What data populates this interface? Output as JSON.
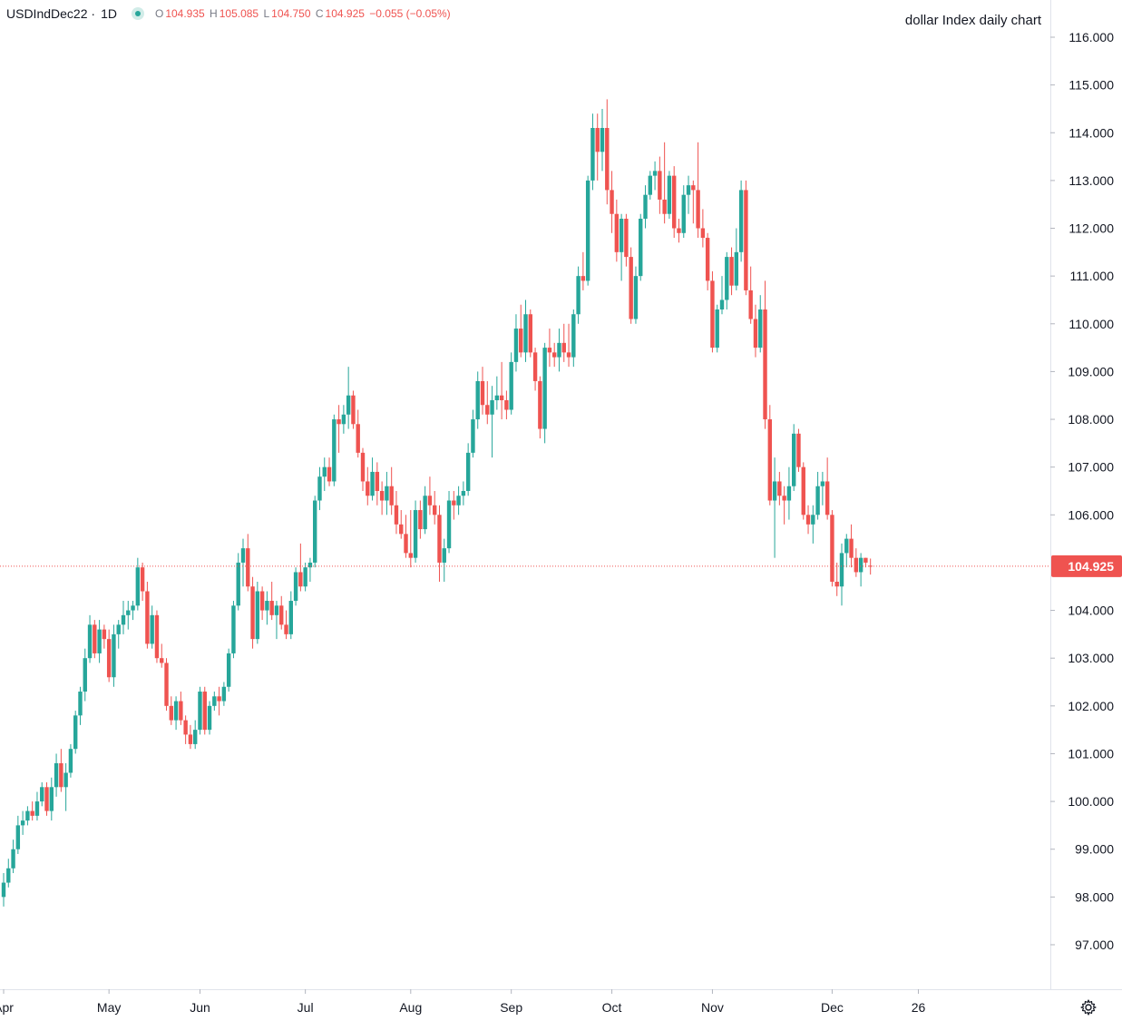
{
  "header": {
    "symbol": "USDIndDec22",
    "timeframe": "1D",
    "o_key": "O",
    "o_val": "104.935",
    "h_key": "H",
    "h_val": "105.085",
    "l_key": "L",
    "l_val": "104.750",
    "c_key": "C",
    "c_val": "104.925",
    "change": "−0.055 (−0.05%)"
  },
  "annotation": "dollar Index daily chart",
  "icons": {
    "status": "live-dot-icon",
    "settings": "gear-icon"
  },
  "colors": {
    "up": "#26a69a",
    "down": "#ef5350",
    "last_price_line": "#ef5350"
  },
  "chart_data": {
    "type": "candlestick",
    "title": "",
    "ylim": [
      96,
      116.8
    ],
    "y_ticks": [
      "116.000",
      "115.000",
      "114.000",
      "113.000",
      "112.000",
      "111.000",
      "110.000",
      "109.000",
      "108.000",
      "107.000",
      "106.000",
      "104.000",
      "103.000",
      "102.000",
      "101.000",
      "100.000",
      "99.000",
      "98.000",
      "97.000"
    ],
    "x_ticks": [
      "Apr",
      "May",
      "Jun",
      "Jul",
      "Aug",
      "Sep",
      "Oct",
      "Nov",
      "Dec",
      "26"
    ],
    "last_price": "104.925",
    "grid": false,
    "candles": [
      {
        "c": "Apr",
        "o": 98.0,
        "h": 98.5,
        "l": 97.8,
        "c2": 98.3
      },
      {
        "o": 98.3,
        "h": 98.8,
        "l": 98.2,
        "c2": 98.6
      },
      {
        "o": 98.6,
        "h": 99.2,
        "l": 98.5,
        "c2": 99.0
      },
      {
        "o": 99.0,
        "h": 99.7,
        "l": 98.9,
        "c2": 99.5
      },
      {
        "o": 99.5,
        "h": 99.8,
        "l": 99.3,
        "c2": 99.6
      },
      {
        "o": 99.6,
        "h": 99.9,
        "l": 99.5,
        "c2": 99.8
      },
      {
        "o": 99.8,
        "h": 100.0,
        "l": 99.6,
        "c2": 99.7
      },
      {
        "o": 99.7,
        "h": 100.2,
        "l": 99.6,
        "c2": 100.0
      },
      {
        "o": 100.0,
        "h": 100.4,
        "l": 99.9,
        "c2": 100.3
      },
      {
        "o": 100.3,
        "h": 100.4,
        "l": 99.7,
        "c2": 99.8
      },
      {
        "o": 99.8,
        "h": 100.5,
        "l": 99.6,
        "c2": 100.3
      },
      {
        "o": 100.3,
        "h": 101.0,
        "l": 100.1,
        "c2": 100.8
      },
      {
        "o": 100.8,
        "h": 101.1,
        "l": 100.2,
        "c2": 100.3
      },
      {
        "o": 100.3,
        "h": 100.8,
        "l": 99.8,
        "c2": 100.6
      },
      {
        "o": 100.6,
        "h": 101.2,
        "l": 100.5,
        "c2": 101.1
      },
      {
        "o": 101.1,
        "h": 101.9,
        "l": 101.0,
        "c2": 101.8
      },
      {
        "o": 101.8,
        "h": 102.4,
        "l": 101.6,
        "c2": 102.3
      },
      {
        "o": 102.3,
        "h": 103.2,
        "l": 102.1,
        "c2": 103.0
      },
      {
        "o": 103.0,
        "h": 103.9,
        "l": 102.9,
        "c2": 103.7
      },
      {
        "o": 103.7,
        "h": 103.8,
        "l": 103.0,
        "c2": 103.1
      },
      {
        "o": 103.1,
        "h": 103.8,
        "l": 102.9,
        "c2": 103.6
      },
      {
        "o": 103.6,
        "h": 103.7,
        "l": 103.2,
        "c2": 103.4
      },
      {
        "c": "May",
        "o": 103.4,
        "h": 103.6,
        "l": 102.5,
        "c2": 102.6
      },
      {
        "o": 102.6,
        "h": 103.7,
        "l": 102.4,
        "c2": 103.5
      },
      {
        "o": 103.5,
        "h": 103.8,
        "l": 103.2,
        "c2": 103.7
      },
      {
        "o": 103.7,
        "h": 104.2,
        "l": 103.5,
        "c2": 103.9
      },
      {
        "o": 103.9,
        "h": 104.2,
        "l": 103.6,
        "c2": 104.0
      },
      {
        "o": 104.0,
        "h": 104.2,
        "l": 103.8,
        "c2": 104.1
      },
      {
        "o": 104.1,
        "h": 105.1,
        "l": 104.0,
        "c2": 104.9
      },
      {
        "o": 104.9,
        "h": 105.0,
        "l": 104.2,
        "c2": 104.4
      },
      {
        "o": 104.4,
        "h": 104.6,
        "l": 103.2,
        "c2": 103.3
      },
      {
        "o": 103.3,
        "h": 104.1,
        "l": 103.2,
        "c2": 103.9
      },
      {
        "o": 103.9,
        "h": 104.0,
        "l": 102.9,
        "c2": 103.0
      },
      {
        "o": 103.0,
        "h": 103.3,
        "l": 102.8,
        "c2": 102.9
      },
      {
        "o": 102.9,
        "h": 103.0,
        "l": 101.9,
        "c2": 102.0
      },
      {
        "o": 102.0,
        "h": 102.2,
        "l": 101.6,
        "c2": 101.7
      },
      {
        "o": 101.7,
        "h": 102.2,
        "l": 101.5,
        "c2": 102.1
      },
      {
        "o": 102.1,
        "h": 102.3,
        "l": 101.6,
        "c2": 101.7
      },
      {
        "o": 101.7,
        "h": 101.8,
        "l": 101.2,
        "c2": 101.4
      },
      {
        "o": 101.4,
        "h": 101.6,
        "l": 101.1,
        "c2": 101.2
      },
      {
        "o": 101.2,
        "h": 101.7,
        "l": 101.1,
        "c2": 101.5
      },
      {
        "c": "Jun",
        "o": 101.5,
        "h": 102.4,
        "l": 101.4,
        "c2": 102.3
      },
      {
        "o": 102.3,
        "h": 102.4,
        "l": 101.4,
        "c2": 101.5
      },
      {
        "o": 101.5,
        "h": 102.1,
        "l": 101.4,
        "c2": 102.0
      },
      {
        "o": 102.0,
        "h": 102.3,
        "l": 101.9,
        "c2": 102.2
      },
      {
        "o": 102.2,
        "h": 102.4,
        "l": 101.8,
        "c2": 102.1
      },
      {
        "o": 102.1,
        "h": 102.5,
        "l": 102.0,
        "c2": 102.4
      },
      {
        "o": 102.4,
        "h": 103.2,
        "l": 102.3,
        "c2": 103.1
      },
      {
        "o": 103.1,
        "h": 104.2,
        "l": 103.0,
        "c2": 104.1
      },
      {
        "o": 104.1,
        "h": 105.2,
        "l": 104.0,
        "c2": 105.0
      },
      {
        "o": 105.0,
        "h": 105.5,
        "l": 104.5,
        "c2": 105.3
      },
      {
        "o": 105.3,
        "h": 105.6,
        "l": 104.4,
        "c2": 104.5
      },
      {
        "o": 104.5,
        "h": 104.7,
        "l": 103.2,
        "c2": 103.4
      },
      {
        "o": 103.4,
        "h": 104.6,
        "l": 103.3,
        "c2": 104.4
      },
      {
        "o": 104.4,
        "h": 104.5,
        "l": 103.8,
        "c2": 104.0
      },
      {
        "o": 104.0,
        "h": 104.4,
        "l": 103.7,
        "c2": 104.2
      },
      {
        "o": 104.2,
        "h": 104.6,
        "l": 103.8,
        "c2": 103.9
      },
      {
        "o": 103.9,
        "h": 104.2,
        "l": 103.4,
        "c2": 104.1
      },
      {
        "o": 104.1,
        "h": 104.3,
        "l": 103.6,
        "c2": 103.7
      },
      {
        "o": 103.7,
        "h": 104.0,
        "l": 103.4,
        "c2": 103.5
      },
      {
        "o": 103.5,
        "h": 104.4,
        "l": 103.4,
        "c2": 104.2
      },
      {
        "o": 104.2,
        "h": 104.9,
        "l": 104.1,
        "c2": 104.8
      },
      {
        "o": 104.8,
        "h": 105.4,
        "l": 104.4,
        "c2": 104.5
      },
      {
        "c": "Jul",
        "o": 104.5,
        "h": 105.0,
        "l": 104.4,
        "c2": 104.9
      },
      {
        "o": 104.9,
        "h": 105.1,
        "l": 104.6,
        "c2": 105.0
      },
      {
        "o": 105.0,
        "h": 106.4,
        "l": 104.9,
        "c2": 106.3
      },
      {
        "o": 106.3,
        "h": 107.0,
        "l": 106.1,
        "c2": 106.8
      },
      {
        "o": 106.8,
        "h": 107.2,
        "l": 106.5,
        "c2": 107.0
      },
      {
        "o": 107.0,
        "h": 107.2,
        "l": 106.6,
        "c2": 106.7
      },
      {
        "o": 106.7,
        "h": 108.1,
        "l": 106.6,
        "c2": 108.0
      },
      {
        "o": 108.0,
        "h": 108.3,
        "l": 107.3,
        "c2": 107.9
      },
      {
        "o": 107.9,
        "h": 108.3,
        "l": 107.7,
        "c2": 108.1
      },
      {
        "o": 108.1,
        "h": 109.1,
        "l": 107.8,
        "c2": 108.5
      },
      {
        "o": 108.5,
        "h": 108.6,
        "l": 107.8,
        "c2": 107.9
      },
      {
        "o": 107.9,
        "h": 108.2,
        "l": 107.2,
        "c2": 107.3
      },
      {
        "o": 107.3,
        "h": 107.4,
        "l": 106.5,
        "c2": 106.7
      },
      {
        "o": 106.7,
        "h": 107.0,
        "l": 106.2,
        "c2": 106.4
      },
      {
        "o": 106.4,
        "h": 107.2,
        "l": 106.3,
        "c2": 106.9
      },
      {
        "o": 106.9,
        "h": 107.1,
        "l": 106.2,
        "c2": 106.5
      },
      {
        "o": 106.5,
        "h": 106.7,
        "l": 106.0,
        "c2": 106.3
      },
      {
        "o": 106.3,
        "h": 106.9,
        "l": 106.0,
        "c2": 106.6
      },
      {
        "o": 106.6,
        "h": 107.0,
        "l": 106.0,
        "c2": 106.2
      },
      {
        "o": 106.2,
        "h": 106.5,
        "l": 105.6,
        "c2": 105.8
      },
      {
        "o": 105.8,
        "h": 106.1,
        "l": 105.5,
        "c2": 105.6
      },
      {
        "o": 105.6,
        "h": 106.0,
        "l": 105.1,
        "c2": 105.2
      },
      {
        "c": "Aug",
        "o": 105.2,
        "h": 106.1,
        "l": 104.9,
        "c2": 105.1
      },
      {
        "o": 105.1,
        "h": 106.3,
        "l": 105.0,
        "c2": 106.1
      },
      {
        "o": 106.1,
        "h": 106.3,
        "l": 105.5,
        "c2": 105.7
      },
      {
        "o": 105.7,
        "h": 106.6,
        "l": 105.6,
        "c2": 106.4
      },
      {
        "o": 106.4,
        "h": 106.8,
        "l": 106.0,
        "c2": 106.2
      },
      {
        "o": 106.2,
        "h": 106.5,
        "l": 105.8,
        "c2": 106.0
      },
      {
        "o": 106.0,
        "h": 106.2,
        "l": 104.6,
        "c2": 105.0
      },
      {
        "o": 105.0,
        "h": 105.5,
        "l": 104.6,
        "c2": 105.3
      },
      {
        "o": 105.3,
        "h": 106.5,
        "l": 105.2,
        "c2": 106.3
      },
      {
        "o": 106.3,
        "h": 106.5,
        "l": 105.9,
        "c2": 106.2
      },
      {
        "o": 106.2,
        "h": 106.6,
        "l": 106.0,
        "c2": 106.4
      },
      {
        "o": 106.4,
        "h": 106.7,
        "l": 106.2,
        "c2": 106.5
      },
      {
        "o": 106.5,
        "h": 107.5,
        "l": 106.4,
        "c2": 107.3
      },
      {
        "o": 107.3,
        "h": 108.2,
        "l": 107.2,
        "c2": 108.0
      },
      {
        "o": 108.0,
        "h": 109.0,
        "l": 107.8,
        "c2": 108.8
      },
      {
        "o": 108.8,
        "h": 109.1,
        "l": 108.1,
        "c2": 108.3
      },
      {
        "o": 108.3,
        "h": 108.8,
        "l": 107.9,
        "c2": 108.1
      },
      {
        "o": 108.1,
        "h": 108.7,
        "l": 107.2,
        "c2": 108.4
      },
      {
        "o": 108.4,
        "h": 108.9,
        "l": 108.2,
        "c2": 108.5
      },
      {
        "o": 108.5,
        "h": 109.2,
        "l": 108.0,
        "c2": 108.4
      },
      {
        "o": 108.4,
        "h": 108.6,
        "l": 108.0,
        "c2": 108.2
      },
      {
        "c": "Sep",
        "o": 108.2,
        "h": 109.4,
        "l": 108.1,
        "c2": 109.2
      },
      {
        "o": 109.2,
        "h": 110.2,
        "l": 109.0,
        "c2": 109.9
      },
      {
        "o": 109.9,
        "h": 110.4,
        "l": 109.3,
        "c2": 109.4
      },
      {
        "o": 109.4,
        "h": 110.5,
        "l": 109.2,
        "c2": 110.2
      },
      {
        "o": 110.2,
        "h": 110.3,
        "l": 109.3,
        "c2": 109.4
      },
      {
        "o": 109.4,
        "h": 109.5,
        "l": 108.6,
        "c2": 108.8
      },
      {
        "o": 108.8,
        "h": 108.9,
        "l": 107.6,
        "c2": 107.8
      },
      {
        "o": 107.8,
        "h": 109.6,
        "l": 107.5,
        "c2": 109.5
      },
      {
        "o": 109.5,
        "h": 109.9,
        "l": 109.1,
        "c2": 109.4
      },
      {
        "o": 109.4,
        "h": 109.6,
        "l": 109.1,
        "c2": 109.3
      },
      {
        "o": 109.3,
        "h": 109.9,
        "l": 109.0,
        "c2": 109.6
      },
      {
        "o": 109.6,
        "h": 110.0,
        "l": 109.2,
        "c2": 109.4
      },
      {
        "o": 109.4,
        "h": 110.0,
        "l": 109.1,
        "c2": 109.3
      },
      {
        "o": 109.3,
        "h": 110.3,
        "l": 109.1,
        "c2": 110.2
      },
      {
        "o": 110.2,
        "h": 111.2,
        "l": 110.0,
        "c2": 111.0
      },
      {
        "o": 111.0,
        "h": 111.5,
        "l": 110.7,
        "c2": 110.9
      },
      {
        "o": 110.9,
        "h": 113.1,
        "l": 110.8,
        "c2": 113.0
      },
      {
        "o": 113.0,
        "h": 114.4,
        "l": 112.8,
        "c2": 114.1
      },
      {
        "o": 114.1,
        "h": 114.4,
        "l": 113.0,
        "c2": 113.6
      },
      {
        "o": 113.6,
        "h": 114.5,
        "l": 113.2,
        "c2": 114.1
      },
      {
        "o": 114.1,
        "h": 114.7,
        "l": 112.5,
        "c2": 112.8
      },
      {
        "c": "Oct",
        "o": 112.8,
        "h": 113.2,
        "l": 111.9,
        "c2": 112.3
      },
      {
        "o": 112.3,
        "h": 112.6,
        "l": 111.3,
        "c2": 111.5
      },
      {
        "o": 111.5,
        "h": 112.3,
        "l": 110.9,
        "c2": 112.2
      },
      {
        "o": 112.2,
        "h": 112.3,
        "l": 111.2,
        "c2": 111.4
      },
      {
        "o": 111.4,
        "h": 111.6,
        "l": 110.0,
        "c2": 110.1
      },
      {
        "o": 110.1,
        "h": 111.2,
        "l": 110.0,
        "c2": 111.0
      },
      {
        "o": 111.0,
        "h": 112.3,
        "l": 110.9,
        "c2": 112.2
      },
      {
        "o": 112.2,
        "h": 112.9,
        "l": 112.0,
        "c2": 112.7
      },
      {
        "o": 112.7,
        "h": 113.2,
        "l": 112.6,
        "c2": 113.1
      },
      {
        "o": 113.1,
        "h": 113.4,
        "l": 112.8,
        "c2": 113.2
      },
      {
        "o": 113.2,
        "h": 113.5,
        "l": 112.3,
        "c2": 112.6
      },
      {
        "o": 112.6,
        "h": 113.8,
        "l": 112.1,
        "c2": 112.3
      },
      {
        "o": 112.3,
        "h": 113.2,
        "l": 112.2,
        "c2": 113.1
      },
      {
        "o": 113.1,
        "h": 113.3,
        "l": 111.8,
        "c2": 112.0
      },
      {
        "o": 112.0,
        "h": 112.2,
        "l": 111.7,
        "c2": 111.9
      },
      {
        "o": 111.9,
        "h": 112.9,
        "l": 111.8,
        "c2": 112.7
      },
      {
        "o": 112.7,
        "h": 113.1,
        "l": 112.3,
        "c2": 112.9
      },
      {
        "o": 112.9,
        "h": 113.0,
        "l": 112.1,
        "c2": 112.8
      },
      {
        "o": 112.8,
        "h": 113.8,
        "l": 111.8,
        "c2": 112.0
      },
      {
        "o": 112.0,
        "h": 112.4,
        "l": 111.6,
        "c2": 111.8
      },
      {
        "o": 111.8,
        "h": 111.9,
        "l": 110.7,
        "c2": 110.9
      },
      {
        "c": "Nov",
        "o": 110.9,
        "h": 111.1,
        "l": 109.4,
        "c2": 109.5
      },
      {
        "o": 109.5,
        "h": 110.4,
        "l": 109.4,
        "c2": 110.3
      },
      {
        "o": 110.3,
        "h": 111.0,
        "l": 110.2,
        "c2": 110.5
      },
      {
        "o": 110.5,
        "h": 111.5,
        "l": 110.3,
        "c2": 111.4
      },
      {
        "o": 111.4,
        "h": 111.6,
        "l": 110.6,
        "c2": 110.8
      },
      {
        "o": 110.8,
        "h": 112.0,
        "l": 110.7,
        "c2": 111.5
      },
      {
        "o": 111.5,
        "h": 113.0,
        "l": 111.3,
        "c2": 112.8
      },
      {
        "o": 112.8,
        "h": 113.0,
        "l": 110.6,
        "c2": 110.7
      },
      {
        "o": 110.7,
        "h": 111.2,
        "l": 110.0,
        "c2": 110.1
      },
      {
        "o": 110.1,
        "h": 110.4,
        "l": 109.3,
        "c2": 109.5
      },
      {
        "o": 109.5,
        "h": 110.6,
        "l": 109.4,
        "c2": 110.3
      },
      {
        "o": 110.3,
        "h": 110.9,
        "l": 107.8,
        "c2": 108.0
      },
      {
        "o": 108.0,
        "h": 108.3,
        "l": 106.2,
        "c2": 106.3
      },
      {
        "o": 106.3,
        "h": 107.2,
        "l": 105.1,
        "c2": 106.7
      },
      {
        "o": 106.7,
        "h": 106.9,
        "l": 106.2,
        "c2": 106.4
      },
      {
        "o": 106.4,
        "h": 106.6,
        "l": 105.8,
        "c2": 106.3
      },
      {
        "o": 106.3,
        "h": 107.0,
        "l": 105.9,
        "c2": 106.6
      },
      {
        "o": 106.6,
        "h": 107.9,
        "l": 106.5,
        "c2": 107.7
      },
      {
        "o": 107.7,
        "h": 107.8,
        "l": 106.9,
        "c2": 107.0
      },
      {
        "o": 107.0,
        "h": 107.1,
        "l": 105.9,
        "c2": 106.0
      },
      {
        "o": 106.0,
        "h": 106.2,
        "l": 105.6,
        "c2": 105.8
      },
      {
        "o": 105.8,
        "h": 106.2,
        "l": 105.4,
        "c2": 106.0
      },
      {
        "o": 106.0,
        "h": 106.9,
        "l": 105.9,
        "c2": 106.6
      },
      {
        "o": 106.6,
        "h": 106.9,
        "l": 106.2,
        "c2": 106.7
      },
      {
        "o": 106.7,
        "h": 107.2,
        "l": 105.9,
        "c2": 106.0
      },
      {
        "c": "Dec",
        "o": 106.0,
        "h": 106.1,
        "l": 104.5,
        "c2": 104.6
      },
      {
        "o": 104.6,
        "h": 105.0,
        "l": 104.3,
        "c2": 104.5
      },
      {
        "o": 104.5,
        "h": 105.4,
        "l": 104.1,
        "c2": 105.2
      },
      {
        "o": 105.2,
        "h": 105.6,
        "l": 104.9,
        "c2": 105.5
      },
      {
        "o": 105.5,
        "h": 105.8,
        "l": 104.9,
        "c2": 105.1
      },
      {
        "o": 105.1,
        "h": 105.3,
        "l": 104.7,
        "c2": 104.8
      },
      {
        "o": 104.8,
        "h": 105.2,
        "l": 104.5,
        "c2": 105.1
      },
      {
        "o": 105.1,
        "h": 105.1,
        "l": 104.9,
        "c2": 105.0
      },
      {
        "o": 104.935,
        "h": 105.085,
        "l": 104.75,
        "c2": 104.925
      }
    ]
  }
}
